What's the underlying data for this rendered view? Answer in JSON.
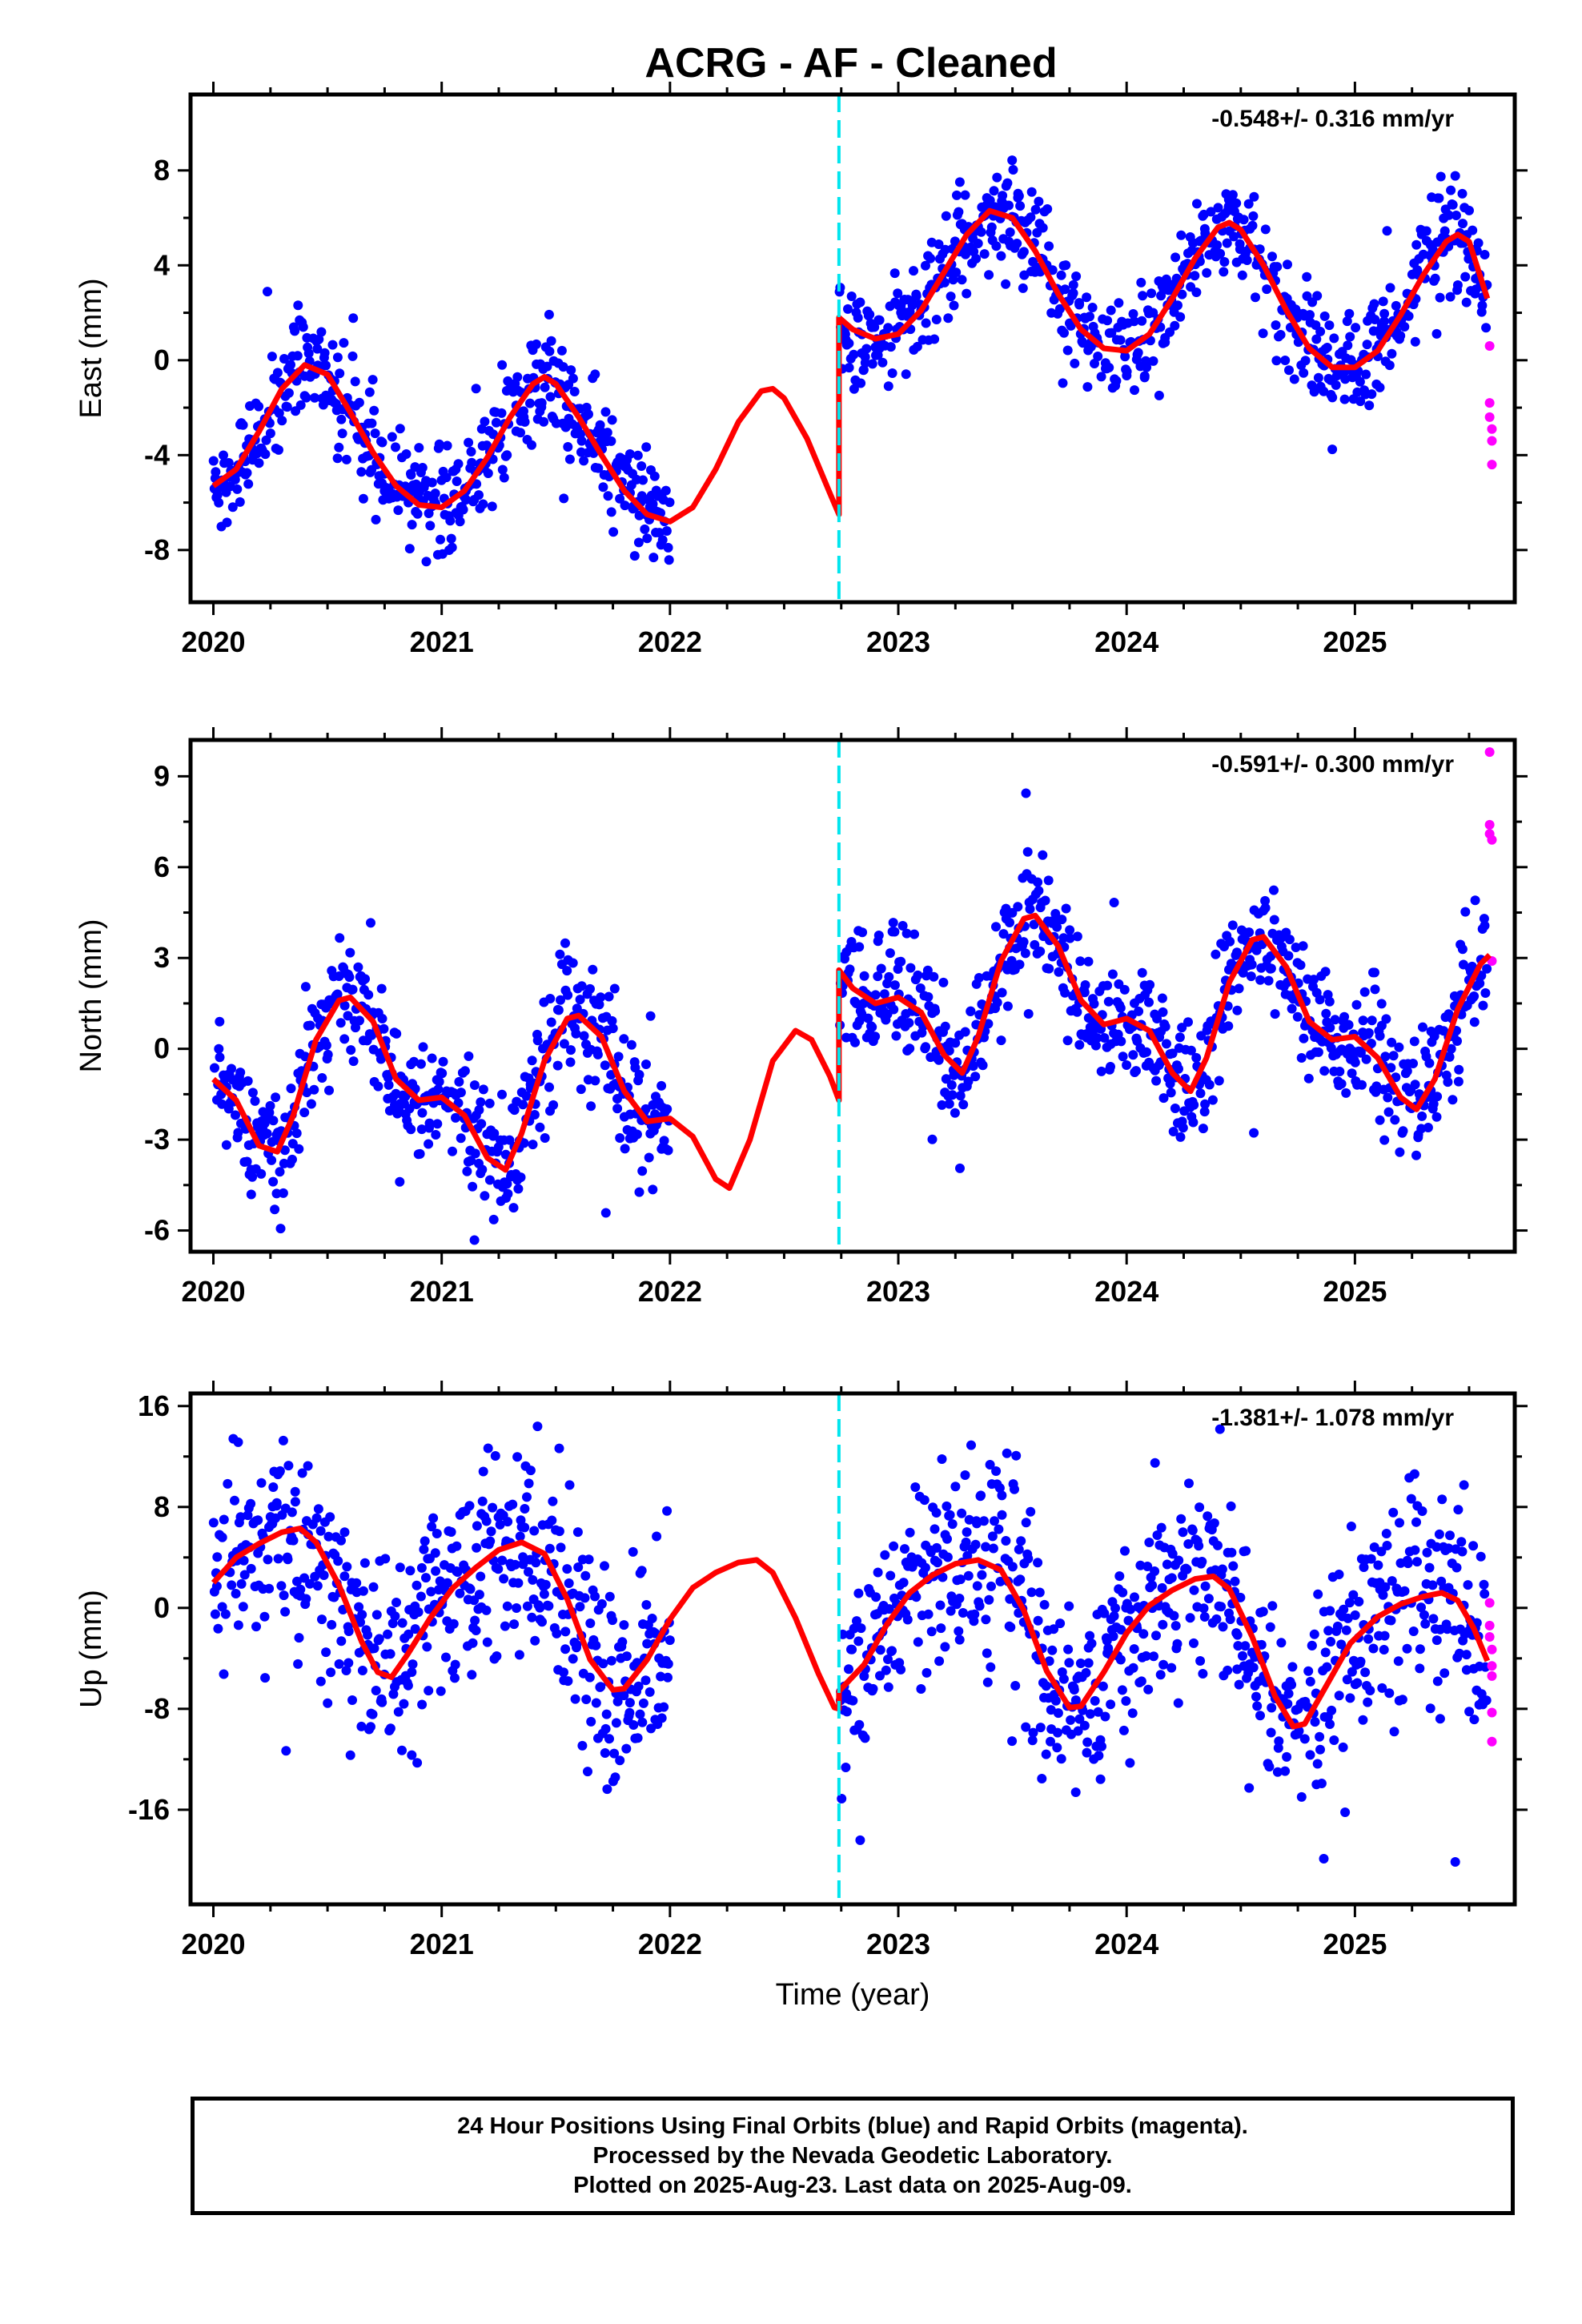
{
  "title": "ACRG  - AF - Cleaned",
  "footer": {
    "lines": [
      "24 Hour Positions Using Final Orbits (blue) and Rapid Orbits (magenta).",
      "Processed by the Nevada Geodetic Laboratory.",
      "Plotted on 2025-Aug-23. Last data on 2025-Aug-09."
    ]
  },
  "colors": {
    "final_orbits": "#0000ff",
    "rapid_orbits": "#ff00ff",
    "model_fit": "#ff0000",
    "equipment_change": "#00e5ee"
  },
  "chart_data": [
    {
      "type": "scatter",
      "component": "east",
      "ylabel": "East (mm)",
      "xlabel": "",
      "xlim": [
        2019.9,
        2025.7
      ],
      "ylim": [
        -10.2,
        11.2
      ],
      "yticks": [
        -8,
        -4,
        0,
        4,
        8
      ],
      "xticks": [
        2020,
        2021,
        2022,
        2023,
        2024,
        2025
      ],
      "rate_label": "-0.548+/- 0.316 mm/yr",
      "equipment_change": 2022.74,
      "data_gap": [
        2022.0,
        2022.74
      ],
      "rapid_orbits": [
        [
          2025.59,
          0.6
        ],
        [
          2025.59,
          -1.8
        ],
        [
          2025.59,
          -2.4
        ],
        [
          2025.6,
          -2.9
        ],
        [
          2025.6,
          -3.4
        ],
        [
          2025.6,
          -4.4
        ]
      ],
      "model_fit": [
        {
          "x": 2020.0,
          "y": -5.3
        },
        {
          "x": 2020.1,
          "y": -4.6
        },
        {
          "x": 2020.2,
          "y": -3.0
        },
        {
          "x": 2020.3,
          "y": -1.2
        },
        {
          "x": 2020.4,
          "y": -0.2
        },
        {
          "x": 2020.5,
          "y": -0.6
        },
        {
          "x": 2020.6,
          "y": -2.2
        },
        {
          "x": 2020.7,
          "y": -3.9
        },
        {
          "x": 2020.8,
          "y": -5.3
        },
        {
          "x": 2020.9,
          "y": -6.1
        },
        {
          "x": 2021.0,
          "y": -6.2
        },
        {
          "x": 2021.1,
          "y": -5.5
        },
        {
          "x": 2021.2,
          "y": -4.1
        },
        {
          "x": 2021.3,
          "y": -2.4
        },
        {
          "x": 2021.4,
          "y": -1.0
        },
        {
          "x": 2021.45,
          "y": -0.7
        },
        {
          "x": 2021.5,
          "y": -1.0
        },
        {
          "x": 2021.6,
          "y": -2.4
        },
        {
          "x": 2021.7,
          "y": -4.0
        },
        {
          "x": 2021.8,
          "y": -5.5
        },
        {
          "x": 2021.9,
          "y": -6.5
        },
        {
          "x": 2022.0,
          "y": -6.8
        },
        {
          "x": 2022.1,
          "y": -6.2
        },
        {
          "x": 2022.2,
          "y": -4.6
        },
        {
          "x": 2022.3,
          "y": -2.6
        },
        {
          "x": 2022.4,
          "y": -1.3
        },
        {
          "x": 2022.45,
          "y": -1.2
        },
        {
          "x": 2022.5,
          "y": -1.6
        },
        {
          "x": 2022.6,
          "y": -3.3
        },
        {
          "x": 2022.7,
          "y": -5.6
        },
        {
          "x": 2022.74,
          "y": -6.5
        },
        {
          "x": 2022.74,
          "y": 1.8
        },
        {
          "x": 2022.8,
          "y": 1.3
        },
        {
          "x": 2022.9,
          "y": 0.9
        },
        {
          "x": 2023.0,
          "y": 1.1
        },
        {
          "x": 2023.1,
          "y": 2.1
        },
        {
          "x": 2023.2,
          "y": 3.7
        },
        {
          "x": 2023.3,
          "y": 5.3
        },
        {
          "x": 2023.4,
          "y": 6.3
        },
        {
          "x": 2023.5,
          "y": 6.0
        },
        {
          "x": 2023.6,
          "y": 4.6
        },
        {
          "x": 2023.7,
          "y": 2.8
        },
        {
          "x": 2023.8,
          "y": 1.3
        },
        {
          "x": 2023.9,
          "y": 0.5
        },
        {
          "x": 2024.0,
          "y": 0.4
        },
        {
          "x": 2024.1,
          "y": 1.1
        },
        {
          "x": 2024.2,
          "y": 2.6
        },
        {
          "x": 2024.3,
          "y": 4.3
        },
        {
          "x": 2024.4,
          "y": 5.6
        },
        {
          "x": 2024.45,
          "y": 5.8
        },
        {
          "x": 2024.5,
          "y": 5.5
        },
        {
          "x": 2024.6,
          "y": 4.0
        },
        {
          "x": 2024.7,
          "y": 2.1
        },
        {
          "x": 2024.8,
          "y": 0.5
        },
        {
          "x": 2024.9,
          "y": -0.3
        },
        {
          "x": 2025.0,
          "y": -0.3
        },
        {
          "x": 2025.1,
          "y": 0.4
        },
        {
          "x": 2025.2,
          "y": 1.9
        },
        {
          "x": 2025.3,
          "y": 3.6
        },
        {
          "x": 2025.4,
          "y": 5.0
        },
        {
          "x": 2025.45,
          "y": 5.3
        },
        {
          "x": 2025.5,
          "y": 5.0
        },
        {
          "x": 2025.58,
          "y": 2.6
        }
      ]
    },
    {
      "type": "scatter",
      "component": "north",
      "ylabel": "North (mm)",
      "xlabel": "",
      "xlim": [
        2019.9,
        2025.7
      ],
      "ylim": [
        -6.7,
        10.2
      ],
      "yticks": [
        -6,
        -3,
        0,
        3,
        6,
        9
      ],
      "xticks": [
        2020,
        2021,
        2022,
        2023,
        2024,
        2025
      ],
      "rate_label": "-0.591+/- 0.300 mm/yr",
      "equipment_change": 2022.74,
      "data_gap": [
        2022.0,
        2022.74
      ],
      "rapid_orbits": [
        [
          2025.59,
          9.8
        ],
        [
          2025.59,
          7.4
        ],
        [
          2025.59,
          7.1
        ],
        [
          2025.6,
          6.9
        ],
        [
          2025.6,
          2.9
        ]
      ],
      "model_fit": [
        {
          "x": 2020.0,
          "y": -1.0
        },
        {
          "x": 2020.1,
          "y": -1.7
        },
        {
          "x": 2020.2,
          "y": -3.2
        },
        {
          "x": 2020.28,
          "y": -3.4
        },
        {
          "x": 2020.35,
          "y": -2.2
        },
        {
          "x": 2020.45,
          "y": 0.3
        },
        {
          "x": 2020.55,
          "y": 1.6
        },
        {
          "x": 2020.6,
          "y": 1.7
        },
        {
          "x": 2020.7,
          "y": 0.9
        },
        {
          "x": 2020.8,
          "y": -1.0
        },
        {
          "x": 2020.9,
          "y": -1.7
        },
        {
          "x": 2021.0,
          "y": -1.6
        },
        {
          "x": 2021.1,
          "y": -2.2
        },
        {
          "x": 2021.2,
          "y": -3.6
        },
        {
          "x": 2021.28,
          "y": -4.0
        },
        {
          "x": 2021.35,
          "y": -2.8
        },
        {
          "x": 2021.45,
          "y": -0.4
        },
        {
          "x": 2021.55,
          "y": 1.0
        },
        {
          "x": 2021.6,
          "y": 1.1
        },
        {
          "x": 2021.7,
          "y": 0.4
        },
        {
          "x": 2021.8,
          "y": -1.4
        },
        {
          "x": 2021.9,
          "y": -2.4
        },
        {
          "x": 2022.0,
          "y": -2.3
        },
        {
          "x": 2022.1,
          "y": -2.9
        },
        {
          "x": 2022.2,
          "y": -4.3
        },
        {
          "x": 2022.26,
          "y": -4.6
        },
        {
          "x": 2022.35,
          "y": -3.0
        },
        {
          "x": 2022.45,
          "y": -0.4
        },
        {
          "x": 2022.55,
          "y": 0.6
        },
        {
          "x": 2022.62,
          "y": 0.3
        },
        {
          "x": 2022.7,
          "y": -0.9
        },
        {
          "x": 2022.74,
          "y": -1.7
        },
        {
          "x": 2022.74,
          "y": 2.6
        },
        {
          "x": 2022.8,
          "y": 2.0
        },
        {
          "x": 2022.9,
          "y": 1.5
        },
        {
          "x": 2023.0,
          "y": 1.7
        },
        {
          "x": 2023.1,
          "y": 1.2
        },
        {
          "x": 2023.2,
          "y": -0.2
        },
        {
          "x": 2023.28,
          "y": -0.8
        },
        {
          "x": 2023.35,
          "y": 0.4
        },
        {
          "x": 2023.45,
          "y": 2.9
        },
        {
          "x": 2023.55,
          "y": 4.3
        },
        {
          "x": 2023.6,
          "y": 4.4
        },
        {
          "x": 2023.7,
          "y": 3.4
        },
        {
          "x": 2023.8,
          "y": 1.6
        },
        {
          "x": 2023.9,
          "y": 0.8
        },
        {
          "x": 2024.0,
          "y": 1.0
        },
        {
          "x": 2024.1,
          "y": 0.6
        },
        {
          "x": 2024.2,
          "y": -0.8
        },
        {
          "x": 2024.28,
          "y": -1.4
        },
        {
          "x": 2024.35,
          "y": -0.3
        },
        {
          "x": 2024.45,
          "y": 2.2
        },
        {
          "x": 2024.55,
          "y": 3.6
        },
        {
          "x": 2024.6,
          "y": 3.7
        },
        {
          "x": 2024.7,
          "y": 2.7
        },
        {
          "x": 2024.8,
          "y": 0.9
        },
        {
          "x": 2024.9,
          "y": 0.3
        },
        {
          "x": 2025.0,
          "y": 0.4
        },
        {
          "x": 2025.1,
          "y": -0.3
        },
        {
          "x": 2025.2,
          "y": -1.6
        },
        {
          "x": 2025.27,
          "y": -2.0
        },
        {
          "x": 2025.35,
          "y": -1.0
        },
        {
          "x": 2025.45,
          "y": 1.3
        },
        {
          "x": 2025.55,
          "y": 2.8
        },
        {
          "x": 2025.59,
          "y": 3.1
        }
      ]
    },
    {
      "type": "scatter",
      "component": "up",
      "ylabel": "Up (mm)",
      "xlabel": "Time (year)",
      "xlim": [
        2019.9,
        2025.7
      ],
      "ylim": [
        -23.5,
        17
      ],
      "yticks": [
        -16,
        -8,
        0,
        8,
        16
      ],
      "xticks": [
        2020,
        2021,
        2022,
        2023,
        2024,
        2025
      ],
      "rate_label": "-1.381+/- 1.078 mm/yr",
      "equipment_change": 2022.74,
      "data_gap": [
        2022.0,
        2022.74
      ],
      "rapid_orbits": [
        [
          2025.59,
          0.4
        ],
        [
          2025.59,
          -1.4
        ],
        [
          2025.59,
          -2.3
        ],
        [
          2025.6,
          -3.3
        ],
        [
          2025.6,
          -4.6
        ],
        [
          2025.6,
          -5.4
        ],
        [
          2025.6,
          -8.3
        ],
        [
          2025.6,
          -10.6
        ]
      ],
      "model_fit": [
        {
          "x": 2020.0,
          "y": 2.0
        },
        {
          "x": 2020.1,
          "y": 4.0
        },
        {
          "x": 2020.2,
          "y": 5.1
        },
        {
          "x": 2020.3,
          "y": 6.0
        },
        {
          "x": 2020.38,
          "y": 6.3
        },
        {
          "x": 2020.45,
          "y": 5.2
        },
        {
          "x": 2020.55,
          "y": 1.8
        },
        {
          "x": 2020.65,
          "y": -2.7
        },
        {
          "x": 2020.72,
          "y": -5.1
        },
        {
          "x": 2020.78,
          "y": -5.5
        },
        {
          "x": 2020.85,
          "y": -3.7
        },
        {
          "x": 2020.95,
          "y": -0.8
        },
        {
          "x": 2021.05,
          "y": 1.6
        },
        {
          "x": 2021.15,
          "y": 3.2
        },
        {
          "x": 2021.25,
          "y": 4.6
        },
        {
          "x": 2021.35,
          "y": 5.2
        },
        {
          "x": 2021.45,
          "y": 4.3
        },
        {
          "x": 2021.55,
          "y": 0.7
        },
        {
          "x": 2021.65,
          "y": -4.1
        },
        {
          "x": 2021.75,
          "y": -6.5
        },
        {
          "x": 2021.8,
          "y": -6.4
        },
        {
          "x": 2021.9,
          "y": -4.1
        },
        {
          "x": 2022.0,
          "y": -0.9
        },
        {
          "x": 2022.1,
          "y": 1.6
        },
        {
          "x": 2022.2,
          "y": 2.8
        },
        {
          "x": 2022.3,
          "y": 3.6
        },
        {
          "x": 2022.38,
          "y": 3.8
        },
        {
          "x": 2022.45,
          "y": 2.8
        },
        {
          "x": 2022.55,
          "y": -0.8
        },
        {
          "x": 2022.65,
          "y": -5.2
        },
        {
          "x": 2022.72,
          "y": -7.9
        },
        {
          "x": 2022.74,
          "y": -8.0
        },
        {
          "x": 2022.74,
          "y": -6.6
        },
        {
          "x": 2022.85,
          "y": -4.5
        },
        {
          "x": 2022.95,
          "y": -1.3
        },
        {
          "x": 2023.05,
          "y": 1.2
        },
        {
          "x": 2023.15,
          "y": 2.6
        },
        {
          "x": 2023.25,
          "y": 3.5
        },
        {
          "x": 2023.35,
          "y": 3.8
        },
        {
          "x": 2023.45,
          "y": 3.0
        },
        {
          "x": 2023.55,
          "y": -0.2
        },
        {
          "x": 2023.65,
          "y": -5.0
        },
        {
          "x": 2023.75,
          "y": -7.9
        },
        {
          "x": 2023.8,
          "y": -7.8
        },
        {
          "x": 2023.9,
          "y": -5.1
        },
        {
          "x": 2024.0,
          "y": -2.0
        },
        {
          "x": 2024.1,
          "y": 0.2
        },
        {
          "x": 2024.2,
          "y": 1.4
        },
        {
          "x": 2024.3,
          "y": 2.3
        },
        {
          "x": 2024.38,
          "y": 2.5
        },
        {
          "x": 2024.45,
          "y": 1.5
        },
        {
          "x": 2024.55,
          "y": -2.3
        },
        {
          "x": 2024.65,
          "y": -7.0
        },
        {
          "x": 2024.73,
          "y": -9.4
        },
        {
          "x": 2024.78,
          "y": -9.2
        },
        {
          "x": 2024.88,
          "y": -6.0
        },
        {
          "x": 2024.98,
          "y": -2.8
        },
        {
          "x": 2025.1,
          "y": -0.7
        },
        {
          "x": 2025.2,
          "y": 0.3
        },
        {
          "x": 2025.3,
          "y": 0.9
        },
        {
          "x": 2025.38,
          "y": 1.2
        },
        {
          "x": 2025.45,
          "y": 0.6
        },
        {
          "x": 2025.52,
          "y": -1.6
        },
        {
          "x": 2025.58,
          "y": -4.2
        }
      ]
    }
  ]
}
